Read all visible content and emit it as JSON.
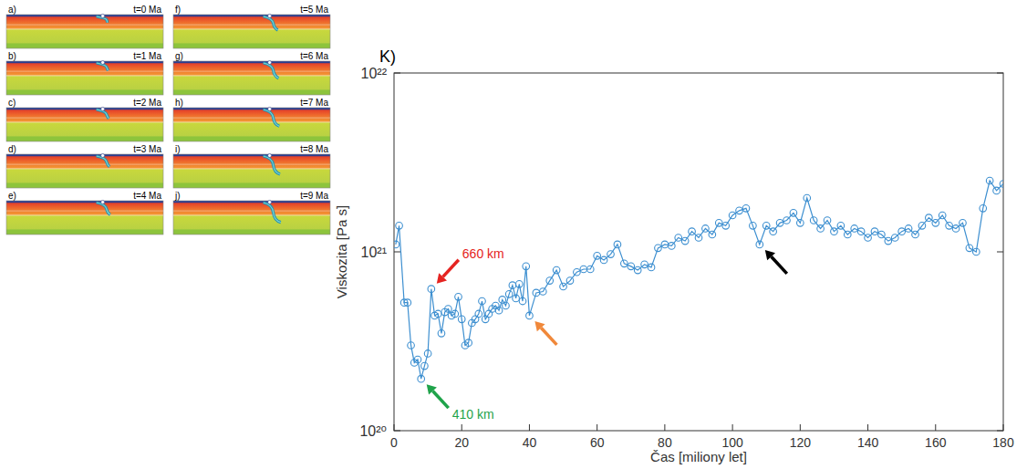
{
  "panels": [
    {
      "label": "a)",
      "time": "t=0 Ma"
    },
    {
      "label": "b)",
      "time": "t=1 Ma"
    },
    {
      "label": "c)",
      "time": "t=2 Ma"
    },
    {
      "label": "d)",
      "time": "t=3 Ma"
    },
    {
      "label": "e)",
      "time": "t=4 Ma"
    },
    {
      "label": "f)",
      "time": "t=5 Ma"
    },
    {
      "label": "g)",
      "time": "t=6 Ma"
    },
    {
      "label": "h)",
      "time": "t=7 Ma"
    },
    {
      "label": "i)",
      "time": "t=8 Ma"
    },
    {
      "label": "j)",
      "time": "t=9 Ma"
    }
  ],
  "chart_data": {
    "type": "line",
    "title": "K)",
    "xlabel": "Čas [miliony let]",
    "ylabel": "Viskozita [Pa s]",
    "log": "y",
    "grid": false,
    "x": [
      0.5,
      1.5,
      3,
      4,
      5,
      6,
      7,
      8,
      9,
      10,
      11,
      12,
      13,
      14,
      15,
      16,
      17,
      18,
      19,
      20,
      21,
      22,
      23,
      24,
      25,
      26,
      27,
      28,
      29,
      30,
      31,
      32,
      33,
      34,
      35,
      36,
      37,
      38,
      39,
      40,
      42,
      44,
      46,
      48,
      50,
      52,
      54,
      56,
      58,
      60,
      62,
      64,
      66,
      68,
      70,
      72,
      74,
      76,
      78,
      80,
      82,
      84,
      86,
      88,
      90,
      92,
      94,
      96,
      98,
      100,
      102,
      104,
      106,
      108,
      110,
      112,
      114,
      116,
      118,
      120,
      122,
      124,
      126,
      128,
      130,
      132,
      134,
      136,
      138,
      140,
      142,
      144,
      146,
      148,
      150,
      152,
      154,
      156,
      158,
      160,
      162,
      164,
      166,
      168,
      170,
      172,
      174,
      176,
      178,
      180
    ],
    "series": [
      {
        "name": "Viskozita",
        "color": "#3d8fd0",
        "marker": "circle",
        "line_style": "solid",
        "values": [
          1.1e+21,
          1.4e+21,
          5.2e+20,
          5.2e+20,
          3e+20,
          2.4e+20,
          2.5e+20,
          1.95e+20,
          2.3e+20,
          2.7e+20,
          6.2e+20,
          4.4e+20,
          4.5e+20,
          3.5e+20,
          4.6e+20,
          4.8e+20,
          4.4e+20,
          4.5e+20,
          5.6e+20,
          4.2e+20,
          3e+20,
          3.1e+20,
          4e+20,
          4.2e+20,
          4.5e+20,
          5.3e+20,
          4.2e+20,
          4.5e+20,
          4.8e+20,
          5e+20,
          4.7e+20,
          5.4e+20,
          5e+20,
          5.8e+20,
          6.5e+20,
          5.5e+20,
          6.6e+20,
          5.3e+20,
          8.3e+20,
          4.4e+20,
          5.9e+20,
          6e+20,
          6.9e+20,
          7.9e+20,
          6.4e+20,
          6.9e+20,
          7.7e+20,
          8e+20,
          8e+20,
          9.5e+20,
          9e+20,
          9.7e+20,
          1.1e+21,
          8.6e+20,
          8.3e+20,
          7.9e+20,
          8.5e+20,
          8.2e+20,
          1.05e+21,
          1.1e+21,
          1.08e+21,
          1.2e+21,
          1.15e+21,
          1.3e+21,
          1.2e+21,
          1.35e+21,
          1.25e+21,
          1.45e+21,
          1.4e+21,
          1.6e+21,
          1.7e+21,
          1.75e+21,
          1.4e+21,
          1.1e+21,
          1.4e+21,
          1.3e+21,
          1.45e+21,
          1.5e+21,
          1.65e+21,
          1.45e+21,
          2e+21,
          1.5e+21,
          1.35e+21,
          1.5e+21,
          1.3e+21,
          1.4e+21,
          1.25e+21,
          1.35e+21,
          1.3e+21,
          1.2e+21,
          1.3e+21,
          1.25e+21,
          1.15e+21,
          1.2e+21,
          1.3e+21,
          1.35e+21,
          1.25e+21,
          1.4e+21,
          1.55e+21,
          1.45e+21,
          1.6e+21,
          1.4e+21,
          1.35e+21,
          1.45e+21,
          1.05e+21,
          1e+21,
          1.75e+21,
          2.5e+21,
          2.2e+21,
          2.4e+21
        ]
      }
    ],
    "xlim": [
      0,
      180
    ],
    "xticks": [
      0,
      20,
      40,
      60,
      80,
      100,
      120,
      140,
      160,
      180
    ],
    "ylim": [
      1e+20,
      1e+22
    ],
    "yticks": [
      {
        "value": 1e+20,
        "label": "10²⁰"
      },
      {
        "value": 1e+21,
        "label": "10²¹"
      },
      {
        "value": 1e+22,
        "label": "10²²"
      }
    ],
    "annotations": [
      {
        "text": "660 km",
        "x": 11,
        "color": "#e52421"
      },
      {
        "text": "410 km",
        "x": 8,
        "color": "#1fa34a"
      },
      {
        "x": 40,
        "color": "#f0883a"
      },
      {
        "x": 108,
        "color": "#000000"
      }
    ]
  }
}
